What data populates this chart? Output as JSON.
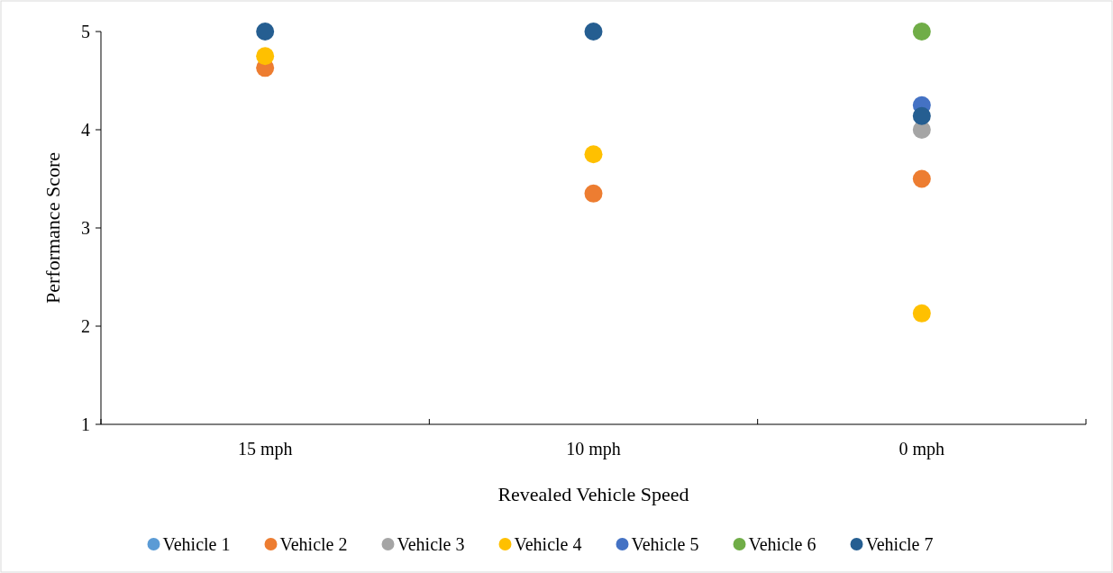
{
  "chart_data": {
    "type": "scatter",
    "xlabel": "Revealed Vehicle Speed",
    "ylabel": "Performance Score",
    "categories": [
      "15 mph",
      "10 mph",
      "0 mph"
    ],
    "ylim": [
      1,
      5
    ],
    "yticks": [
      1,
      2,
      3,
      4,
      5
    ],
    "grid": false,
    "legend": "bottom",
    "marker": "circle",
    "series": [
      {
        "name": "Vehicle 1",
        "color": "#5b9bd5",
        "values": [
          null,
          null,
          null
        ]
      },
      {
        "name": "Vehicle 2",
        "color": "#ed7d31",
        "values": [
          4.63,
          3.35,
          3.5
        ]
      },
      {
        "name": "Vehicle 3",
        "color": "#a5a5a5",
        "values": [
          null,
          null,
          4.0
        ]
      },
      {
        "name": "Vehicle 4",
        "color": "#ffc000",
        "values": [
          4.75,
          3.75,
          2.13
        ]
      },
      {
        "name": "Vehicle 5",
        "color": "#4472c4",
        "values": [
          null,
          null,
          4.25
        ]
      },
      {
        "name": "Vehicle 6",
        "color": "#70ad47",
        "values": [
          null,
          null,
          5
        ]
      },
      {
        "name": "Vehicle 7",
        "color": "#255e91",
        "values": [
          5,
          5,
          4.14
        ]
      }
    ]
  }
}
